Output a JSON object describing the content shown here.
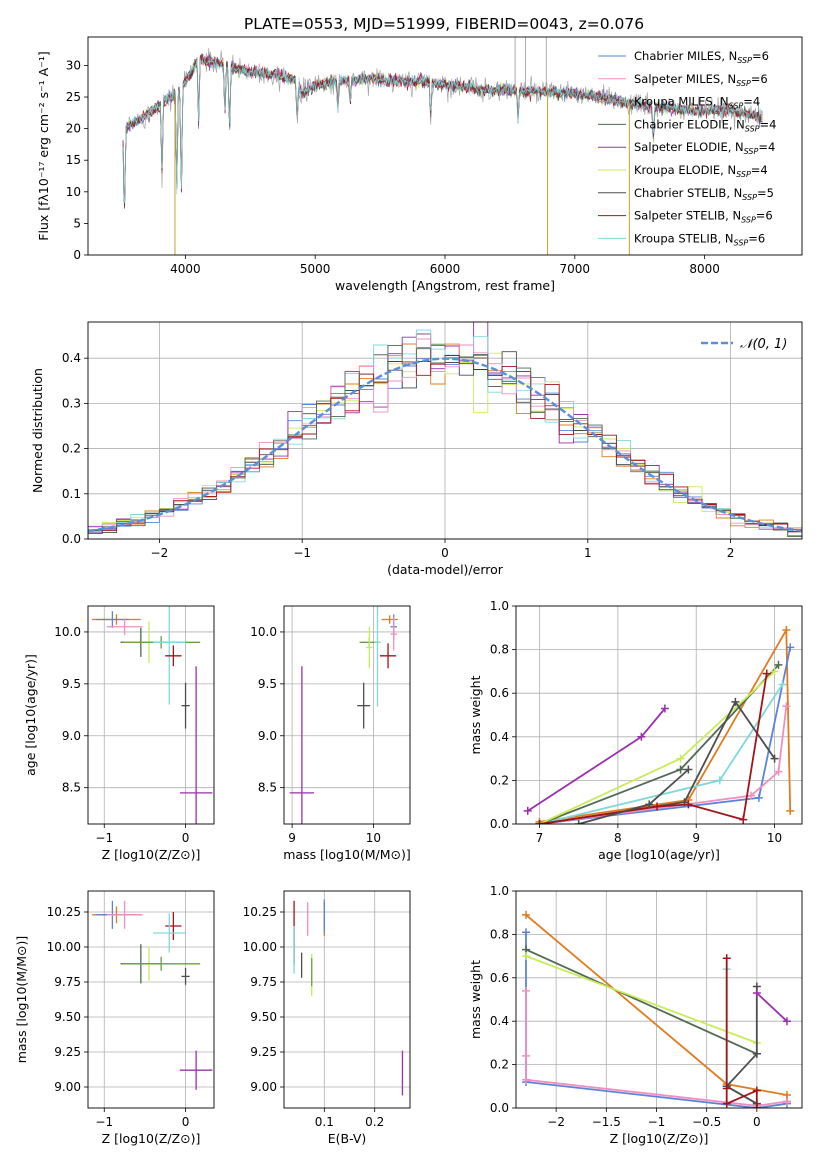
{
  "figure_title": "PLATE=0553, MJD=51999, FIBERID=0043, z=0.076",
  "colors": {
    "chabrier_miles": "#5b84d9",
    "salpeter_miles": "#f08fbf",
    "kroupa_miles": "#9a9a9a",
    "chabrier_elodie": "#4f6b54",
    "salpeter_elodie": "#9b2fae",
    "kroupa_elodie": "#c9eb5a",
    "chabrier_stelib": "#4d4d4d",
    "salpeter_stelib": "#a3141a",
    "kroupa_stelib": "#7fd9d9",
    "orange": "#e07b20",
    "green": "#6f9f42"
  },
  "chart_data": [
    {
      "id": "spectrum",
      "type": "line",
      "title": "",
      "xlabel": "wavelength [Angstrom, rest frame]",
      "ylabel": "Flux [fλ10⁻¹⁷ erg cm⁻² s⁻¹ A⁻¹]",
      "xlim": [
        3250,
        8750
      ],
      "ylim": [
        0,
        34.5
      ],
      "xticks": [
        4000,
        5000,
        6000,
        7000,
        8000
      ],
      "yticks": [
        0,
        5,
        10,
        15,
        20,
        25,
        30
      ],
      "grid": false,
      "legend_position": "top-right",
      "continuum": {
        "x": [
          3520,
          3560,
          3650,
          3760,
          3850,
          3960,
          4100,
          4300,
          4500,
          4700,
          4860,
          4900,
          5000,
          5200,
          5400,
          5600,
          5800,
          6000,
          6200,
          6400,
          6600,
          6800,
          7000,
          7200,
          7400,
          7600,
          7800,
          8000,
          8200,
          8400,
          8450
        ],
        "y": [
          19.5,
          20.5,
          21.5,
          23.0,
          24.5,
          26.0,
          31.0,
          30.0,
          29.0,
          28.5,
          27.5,
          25.5,
          27.0,
          27.5,
          28.0,
          27.5,
          27.5,
          27.0,
          26.5,
          26.0,
          26.0,
          25.8,
          25.5,
          25.0,
          24.0,
          23.5,
          23.0,
          22.8,
          23.0,
          22.0,
          21.5
        ]
      },
      "absorption_lines": [
        {
          "x": 3530,
          "y": 5
        },
        {
          "x": 3820,
          "y": 13
        },
        {
          "x": 3934,
          "y": 11
        },
        {
          "x": 3969,
          "y": 9
        },
        {
          "x": 4102,
          "y": 21
        },
        {
          "x": 4305,
          "y": 22
        },
        {
          "x": 4340,
          "y": 19
        },
        {
          "x": 4861,
          "y": 21
        },
        {
          "x": 5175,
          "y": 23
        },
        {
          "x": 5270,
          "y": 24
        },
        {
          "x": 5890,
          "y": 22
        },
        {
          "x": 6563,
          "y": 21
        },
        {
          "x": 7605,
          "y": 18
        }
      ],
      "glitches": [
        {
          "x": 3920,
          "y": 0
        },
        {
          "x": 6790,
          "y": 0
        },
        {
          "x": 7420,
          "y": 0
        }
      ],
      "spikes": [
        {
          "x": 6540,
          "y": 34.5
        },
        {
          "x": 6620,
          "y": 34.5
        },
        {
          "x": 6780,
          "y": 34.5
        }
      ],
      "series": [
        {
          "name": "Chabrier MILES, N",
          "sub": "SSP",
          "suffix": "=6",
          "color": "#5b84d9"
        },
        {
          "name": "Salpeter MILES, N",
          "sub": "SSP",
          "suffix": "=6",
          "color": "#f08fbf"
        },
        {
          "name": "Kroupa MILES, N",
          "sub": "SSP",
          "suffix": "=4",
          "color": "#9a9a9a"
        },
        {
          "name": "Chabrier ELODIE, N",
          "sub": "SSP",
          "suffix": "=4",
          "color": "#4f6b54"
        },
        {
          "name": "Salpeter ELODIE, N",
          "sub": "SSP",
          "suffix": "=4",
          "color": "#9b2fae"
        },
        {
          "name": "Kroupa ELODIE, N",
          "sub": "SSP",
          "suffix": "=4",
          "color": "#c9eb5a"
        },
        {
          "name": "Chabrier STELIB, N",
          "sub": "SSP",
          "suffix": "=5",
          "color": "#4d4d4d"
        },
        {
          "name": "Salpeter STELIB, N",
          "sub": "SSP",
          "suffix": "=6",
          "color": "#a3141a"
        },
        {
          "name": "Kroupa STELIB, N",
          "sub": "SSP",
          "suffix": "=6",
          "color": "#7fd9d9"
        }
      ]
    },
    {
      "id": "residuals",
      "type": "line",
      "title": "",
      "xlabel": "(data-model)/error",
      "ylabel": "Normed distribution",
      "xlim": [
        -2.5,
        2.5
      ],
      "ylim": [
        0,
        0.48
      ],
      "xticks": [
        -2,
        -1,
        0,
        1,
        2
      ],
      "yticks": [
        0.0,
        0.1,
        0.2,
        0.3,
        0.4
      ],
      "grid": true,
      "legend_position": "top-right",
      "legend_label": "𝒩(0, 1)",
      "reference_curve": {
        "name": "N(0,1)",
        "mean": 0,
        "sigma": 1,
        "style": "dashed",
        "color": "#5b8fd9"
      },
      "bins": 50,
      "bin_range": [
        -2.5,
        2.5
      ],
      "series_colors": [
        "#5b84d9",
        "#e07b20",
        "#c9eb5a",
        "#4d4d4d",
        "#9b2fae",
        "#7fd9d9",
        "#f08fbf",
        "#a3141a",
        "#4f6b54"
      ]
    },
    {
      "id": "age_vs_Z",
      "type": "scatter",
      "xlabel": "Z [log10(Z/Z⊙)]",
      "ylabel": "age  [log10(age/yr)]",
      "xlim": [
        -1.2,
        0.35
      ],
      "ylim": [
        8.15,
        10.25
      ],
      "xticks": [
        -1,
        0
      ],
      "yticks": [
        8.5,
        9.0,
        9.5,
        10.0
      ],
      "grid": true,
      "points": [
        {
          "x": -0.85,
          "y": 10.12,
          "xerr": 0.3,
          "yerr": 0.05,
          "color": "#e07b20"
        },
        {
          "x": -0.9,
          "y": 10.12,
          "xerr": 0.2,
          "yerr": 0.08,
          "color": "#5b84d9"
        },
        {
          "x": -0.75,
          "y": 10.05,
          "xerr": 0.22,
          "yerr": 0.08,
          "color": "#f08fbf"
        },
        {
          "x": -0.55,
          "y": 9.9,
          "xerr": 0.25,
          "yerr": 0.14,
          "color": "#4f6b54"
        },
        {
          "x": -0.45,
          "y": 9.9,
          "xerr": 0.3,
          "yerr": 0.2,
          "color": "#c9eb5a"
        },
        {
          "x": -0.3,
          "y": 9.9,
          "xerr": 0.48,
          "yerr": 0.06,
          "color": "#6f9f42"
        },
        {
          "x": -0.2,
          "y": 9.9,
          "xerr": 0.2,
          "yerr": 0.6,
          "color": "#7fd9d9"
        },
        {
          "x": -0.15,
          "y": 9.77,
          "xerr": 0.1,
          "yerr": 0.1,
          "color": "#a3141a"
        },
        {
          "x": 0.0,
          "y": 9.29,
          "xerr": 0.05,
          "yerr": 0.22,
          "color": "#4d4d4d"
        },
        {
          "x": 0.13,
          "y": 8.45,
          "xerr": 0.2,
          "yerr": 1.22,
          "color": "#9b2fae"
        }
      ]
    },
    {
      "id": "age_vs_mass",
      "type": "scatter",
      "xlabel": "mass [log10(M/M⊙)]",
      "ylabel": "",
      "xlim": [
        8.9,
        10.45
      ],
      "ylim": [
        8.15,
        10.25
      ],
      "xticks": [
        9,
        10
      ],
      "yticks": [
        8.5,
        9.0,
        9.5,
        10.0
      ],
      "grid": true,
      "points": [
        {
          "x": 10.2,
          "y": 10.12,
          "xerr": 0.1,
          "yerr": 0.04,
          "color": "#e07b20"
        },
        {
          "x": 10.25,
          "y": 10.05,
          "xerr": 0.04,
          "yerr": 0.12,
          "color": "#5b84d9"
        },
        {
          "x": 10.25,
          "y": 9.98,
          "xerr": 0.04,
          "yerr": 0.16,
          "color": "#f08fbf"
        },
        {
          "x": 9.95,
          "y": 9.9,
          "xerr": 0.12,
          "yerr": 0.05,
          "color": "#6f9f42"
        },
        {
          "x": 9.95,
          "y": 9.85,
          "xerr": 0.04,
          "yerr": 0.2,
          "color": "#c9eb5a"
        },
        {
          "x": 10.05,
          "y": 9.9,
          "xerr": 0.04,
          "yerr": 0.62,
          "color": "#7fd9d9"
        },
        {
          "x": 10.18,
          "y": 9.77,
          "xerr": 0.1,
          "yerr": 0.12,
          "color": "#a3141a"
        },
        {
          "x": 9.88,
          "y": 9.29,
          "xerr": 0.08,
          "yerr": 0.22,
          "color": "#4d4d4d"
        },
        {
          "x": 9.12,
          "y": 8.45,
          "xerr": 0.15,
          "yerr": 1.22,
          "color": "#9b2fae"
        }
      ]
    },
    {
      "id": "weight_vs_age",
      "type": "line",
      "xlabel": "age  [log10(age/yr)]",
      "ylabel": "mass weight",
      "xlim": [
        6.7,
        10.35
      ],
      "ylim": [
        0,
        1.0
      ],
      "xticks": [
        7,
        8,
        9,
        10
      ],
      "yticks": [
        0.0,
        0.2,
        0.4,
        0.6,
        0.8,
        1.0
      ],
      "grid": true,
      "series": [
        {
          "color": "#e07b20",
          "x": [
            7.0,
            8.9,
            10.15,
            10.2
          ],
          "y": [
            0.01,
            0.11,
            0.89,
            0.06
          ]
        },
        {
          "color": "#5b84d9",
          "x": [
            7.0,
            9.8,
            10.2
          ],
          "y": [
            0.0,
            0.12,
            0.81
          ]
        },
        {
          "color": "#f08fbf",
          "x": [
            7.0,
            9.7,
            10.05,
            10.15
          ],
          "y": [
            0.0,
            0.13,
            0.24,
            0.54
          ]
        },
        {
          "color": "#7fd9d9",
          "x": [
            7.0,
            9.3,
            10.1
          ],
          "y": [
            0.0,
            0.2,
            0.64
          ]
        },
        {
          "color": "#4f6b54",
          "x": [
            7.0,
            8.8,
            10.05
          ],
          "y": [
            0.0,
            0.25,
            0.73
          ]
        },
        {
          "color": "#c9eb5a",
          "x": [
            7.0,
            8.8,
            10.0
          ],
          "y": [
            0.0,
            0.3,
            0.7
          ]
        },
        {
          "color": "#4d4d4d",
          "x": [
            7.0,
            8.85,
            9.5,
            10.0
          ],
          "y": [
            0.0,
            0.1,
            0.56,
            0.3
          ]
        },
        {
          "color": "#a3141a",
          "x": [
            7.0,
            8.5,
            8.9,
            9.6,
            9.9
          ],
          "y": [
            0.0,
            0.08,
            0.09,
            0.02,
            0.69
          ]
        },
        {
          "color": "#9b2fae",
          "x": [
            6.85,
            8.3,
            8.6
          ],
          "y": [
            0.06,
            0.4,
            0.53
          ]
        },
        {
          "color": "#4d4d4d",
          "x": [
            7.5,
            8.4,
            8.9
          ],
          "y": [
            0.0,
            0.09,
            0.25
          ]
        }
      ]
    },
    {
      "id": "mass_vs_Z",
      "type": "scatter",
      "xlabel": "Z [log10(Z/Z⊙)]",
      "ylabel": "mass [log10(M/M⊙)]",
      "xlim": [
        -1.2,
        0.35
      ],
      "ylim": [
        8.85,
        10.4
      ],
      "xticks": [
        -1,
        0
      ],
      "yticks": [
        9.0,
        9.25,
        9.5,
        9.75,
        10.0,
        10.25
      ],
      "grid": true,
      "points": [
        {
          "x": -0.85,
          "y": 10.23,
          "xerr": 0.3,
          "yerr": 0.06,
          "color": "#e07b20"
        },
        {
          "x": -0.9,
          "y": 10.23,
          "xerr": 0.2,
          "yerr": 0.1,
          "color": "#5b84d9"
        },
        {
          "x": -0.75,
          "y": 10.23,
          "xerr": 0.22,
          "yerr": 0.1,
          "color": "#f08fbf"
        },
        {
          "x": -0.15,
          "y": 10.15,
          "xerr": 0.1,
          "yerr": 0.1,
          "color": "#a3141a"
        },
        {
          "x": -0.2,
          "y": 10.1,
          "xerr": 0.2,
          "yerr": 0.14,
          "color": "#7fd9d9"
        },
        {
          "x": -0.45,
          "y": 9.88,
          "xerr": 0.3,
          "yerr": 0.12,
          "color": "#c9eb5a"
        },
        {
          "x": -0.55,
          "y": 9.88,
          "xerr": 0.25,
          "yerr": 0.14,
          "color": "#4f6b54"
        },
        {
          "x": -0.3,
          "y": 9.88,
          "xerr": 0.48,
          "yerr": 0.05,
          "color": "#6f9f42"
        },
        {
          "x": 0.0,
          "y": 9.79,
          "xerr": 0.05,
          "yerr": 0.06,
          "color": "#4d4d4d"
        },
        {
          "x": 0.13,
          "y": 9.12,
          "xerr": 0.2,
          "yerr": 0.14,
          "color": "#9b2fae"
        }
      ]
    },
    {
      "id": "mass_vs_ebv",
      "type": "scatter",
      "xlabel": "E(B-V)",
      "ylabel": "",
      "xlim": [
        0.02,
        0.27
      ],
      "ylim": [
        8.85,
        10.4
      ],
      "xticks": [
        0.1,
        0.2
      ],
      "yticks": [
        9.0,
        9.25,
        9.5,
        9.75,
        10.0,
        10.25
      ],
      "grid": true,
      "points": [
        {
          "x": 0.04,
          "y": 10.1,
          "yerr": 0.23,
          "color": "#a3141a"
        },
        {
          "x": 0.04,
          "y": 9.98,
          "yerr": 0.17,
          "color": "#7fd9d9"
        },
        {
          "x": 0.067,
          "y": 10.2,
          "yerr": 0.12,
          "color": "#f08fbf"
        },
        {
          "x": 0.1,
          "y": 10.2,
          "yerr": 0.12,
          "color": "#e07b20"
        },
        {
          "x": 0.1,
          "y": 10.22,
          "yerr": 0.12,
          "color": "#5b84d9"
        },
        {
          "x": 0.055,
          "y": 9.87,
          "yerr": 0.09,
          "color": "#4d4d4d"
        },
        {
          "x": 0.075,
          "y": 9.8,
          "yerr": 0.15,
          "color": "#c9eb5a"
        },
        {
          "x": 0.075,
          "y": 9.82,
          "yerr": 0.1,
          "color": "#6f9f42"
        },
        {
          "x": 0.255,
          "y": 9.1,
          "yerr": 0.16,
          "color": "#9b2fae"
        }
      ]
    },
    {
      "id": "weight_vs_Z",
      "type": "line",
      "xlabel": "Z [log10(Z/Z⊙)]",
      "ylabel": "mass weight",
      "xlim": [
        -2.4,
        0.45
      ],
      "ylim": [
        0,
        1.0
      ],
      "xticks": [
        -2.0,
        -1.5,
        -1.0,
        -0.5,
        0.0
      ],
      "yticks": [
        0.0,
        0.2,
        0.4,
        0.6,
        0.8,
        1.0
      ],
      "grid": true,
      "series": [
        {
          "color": "#e07b20",
          "x": [
            -2.3,
            -0.3,
            0.3,
            0.3
          ],
          "y": [
            0.89,
            0.11,
            0.06,
            0.03
          ]
        },
        {
          "color": "#5b84d9",
          "x": [
            -2.3,
            -2.3,
            0.0,
            0.3
          ],
          "y": [
            0.81,
            0.12,
            0.0,
            0.02
          ]
        },
        {
          "color": "#f08fbf",
          "x": [
            -2.3,
            -2.3,
            -2.3,
            0.0,
            0.3
          ],
          "y": [
            0.54,
            0.24,
            0.13,
            0.01,
            0.03
          ]
        },
        {
          "color": "#4f6b54",
          "x": [
            -2.3,
            0.0
          ],
          "y": [
            0.73,
            0.25
          ]
        },
        {
          "color": "#c9eb5a",
          "x": [
            -2.3,
            0.0
          ],
          "y": [
            0.7,
            0.3
          ]
        },
        {
          "color": "#7fd9d9",
          "x": [
            -0.3,
            -0.3,
            0.0
          ],
          "y": [
            0.64,
            0.1,
            0.02
          ]
        },
        {
          "color": "#4d4d4d",
          "x": [
            0.0,
            0.0,
            -0.3,
            0.0,
            0.0
          ],
          "y": [
            0.56,
            0.25,
            0.1,
            0.02,
            0.0
          ]
        },
        {
          "color": "#a3141a",
          "x": [
            -0.3,
            -0.3,
            -0.3,
            0.0,
            0.0
          ],
          "y": [
            0.69,
            0.09,
            0.02,
            0.08,
            0.0
          ]
        },
        {
          "color": "#9b2fae",
          "x": [
            0.0,
            0.3
          ],
          "y": [
            0.53,
            0.4
          ]
        }
      ]
    }
  ]
}
